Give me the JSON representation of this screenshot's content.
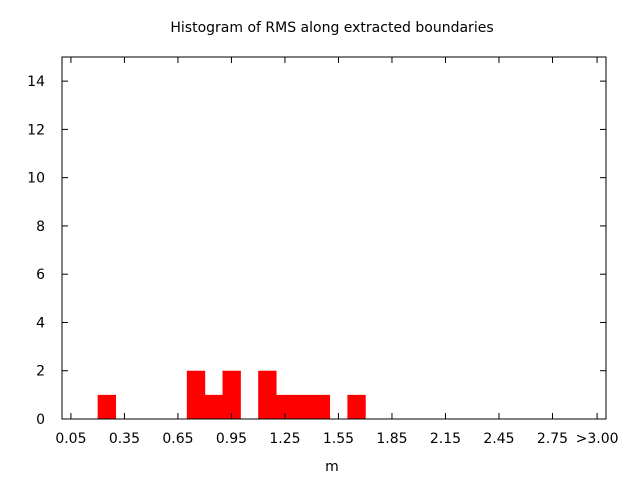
{
  "chart_data": {
    "type": "bar",
    "title": "Histogram of RMS along extracted boundaries",
    "xlabel": "m",
    "ylabel": "",
    "bin_width": 0.1,
    "xlim": [
      0.0,
      3.05
    ],
    "ylim": [
      0,
      15
    ],
    "x_ticks": [
      {
        "value": 0.05,
        "label": "0.05"
      },
      {
        "value": 0.35,
        "label": "0.35"
      },
      {
        "value": 0.65,
        "label": "0.65"
      },
      {
        "value": 0.95,
        "label": "0.95"
      },
      {
        "value": 1.25,
        "label": "1.25"
      },
      {
        "value": 1.55,
        "label": "1.55"
      },
      {
        "value": 1.85,
        "label": "1.85"
      },
      {
        "value": 2.15,
        "label": "2.15"
      },
      {
        "value": 2.45,
        "label": "2.45"
      },
      {
        "value": 2.75,
        "label": "2.75"
      },
      {
        "value": 3.0,
        "label": ">3.00"
      }
    ],
    "y_ticks": [
      {
        "value": 0,
        "label": "0"
      },
      {
        "value": 2,
        "label": "2"
      },
      {
        "value": 4,
        "label": "4"
      },
      {
        "value": 6,
        "label": "6"
      },
      {
        "value": 8,
        "label": "8"
      },
      {
        "value": 10,
        "label": "10"
      },
      {
        "value": 12,
        "label": "12"
      },
      {
        "value": 14,
        "label": "14"
      }
    ],
    "bins": [
      {
        "x": 0.25,
        "count": 1
      },
      {
        "x": 0.75,
        "count": 2
      },
      {
        "x": 0.85,
        "count": 1
      },
      {
        "x": 0.95,
        "count": 2
      },
      {
        "x": 1.15,
        "count": 2
      },
      {
        "x": 1.25,
        "count": 1
      },
      {
        "x": 1.35,
        "count": 1
      },
      {
        "x": 1.45,
        "count": 1
      },
      {
        "x": 1.65,
        "count": 1
      }
    ],
    "bar_color": "#ff0000",
    "grid": false,
    "legend": "none"
  }
}
